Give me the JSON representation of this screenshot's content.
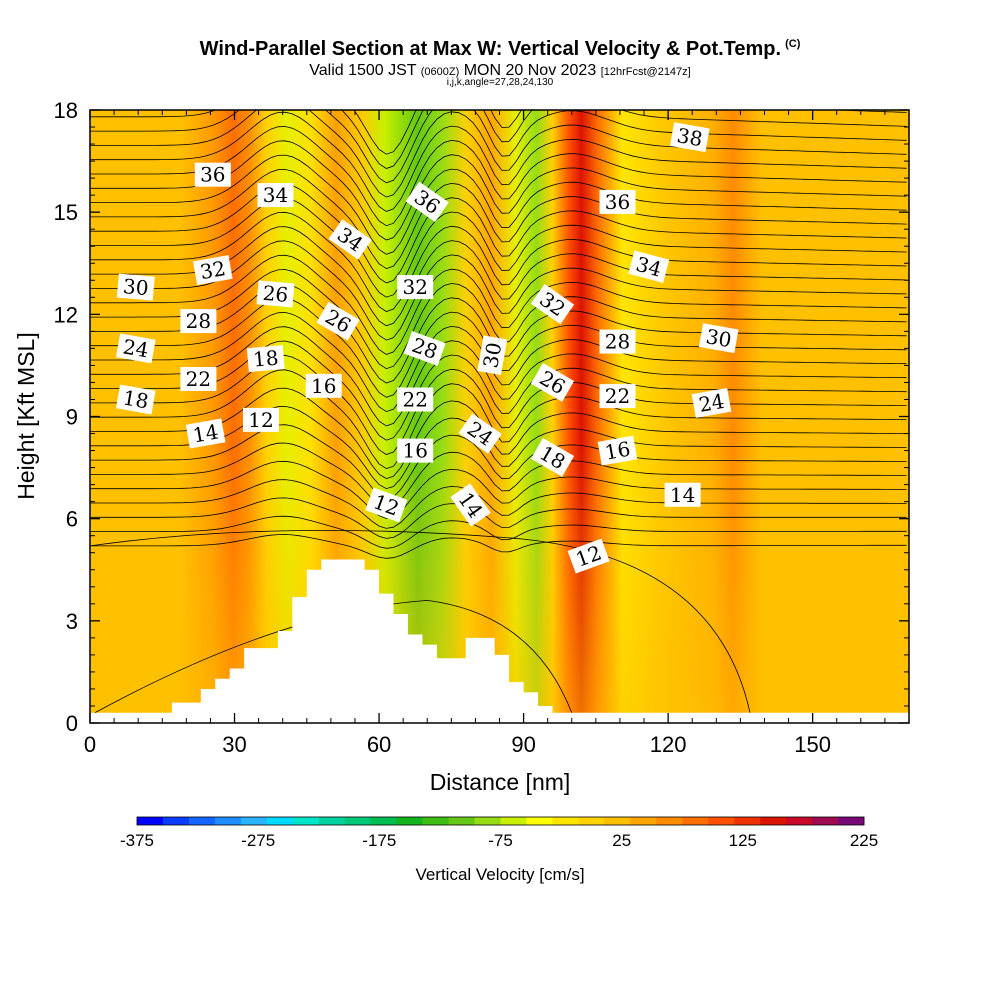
{
  "title_main": "Wind-Parallel Section at Max W: Vertical Velocity & Pot.Temp.",
  "title_mark": "(C)",
  "subtitle_a": "Valid 1500 JST",
  "subtitle_b": "(0600Z)",
  "subtitle_c": "MON 20 Nov 2023",
  "subtitle_d": "[12hrFcst@2147z]",
  "subtitle_line2": "i,j,k,angle=27,28,24,130",
  "chart_data": {
    "type": "heatmap",
    "xlabel": "Distance [nm]",
    "ylabel": "Height [Kft MSL]",
    "xlim": [
      0,
      170
    ],
    "ylim": [
      0,
      18
    ],
    "x_ticks": [
      "0",
      "30",
      "60",
      "90",
      "120",
      "150"
    ],
    "x_tick_values": [
      0,
      30,
      60,
      90,
      120,
      150
    ],
    "y_ticks": [
      "0",
      "3",
      "6",
      "9",
      "12",
      "15",
      "18"
    ],
    "y_tick_values": [
      0,
      3,
      6,
      9,
      12,
      15,
      18
    ],
    "colorbar": {
      "label": "Vertical Velocity [cm/s]",
      "min": -375,
      "max": 225,
      "step": 25,
      "tick_labels": [
        "-375",
        "-275",
        "-175",
        "-75",
        "25",
        "125",
        "225"
      ],
      "colors": [
        "#0000ff",
        "#0a3cff",
        "#1464ff",
        "#1e8cff",
        "#28b4ff",
        "#00dcff",
        "#00e6c8",
        "#00d2a0",
        "#00c878",
        "#00be50",
        "#14b41e",
        "#3cbe14",
        "#64c814",
        "#96dc14",
        "#c8f000",
        "#ffff00",
        "#ffe600",
        "#ffd200",
        "#ffbe00",
        "#ffa500",
        "#ff8c00",
        "#ff6e00",
        "#ff5000",
        "#f03200",
        "#dc1400",
        "#c80a28",
        "#a00a50",
        "#780a78"
      ]
    },
    "theta_contour_labels": [
      {
        "text": "38",
        "x": 124.5,
        "y": 17.2,
        "rot": 10
      },
      {
        "text": "36",
        "x": 25.5,
        "y": 16.1,
        "rot": 0
      },
      {
        "text": "34",
        "x": 38.5,
        "y": 15.5,
        "rot": 0
      },
      {
        "text": "36",
        "x": 70,
        "y": 15.3,
        "rot": 35
      },
      {
        "text": "36",
        "x": 109.5,
        "y": 15.3,
        "rot": 0
      },
      {
        "text": "34",
        "x": 54,
        "y": 14.2,
        "rot": 35
      },
      {
        "text": "32",
        "x": 25.5,
        "y": 13.3,
        "rot": -10
      },
      {
        "text": "34",
        "x": 116,
        "y": 13.4,
        "rot": 15
      },
      {
        "text": "30",
        "x": 9.5,
        "y": 12.8,
        "rot": 5
      },
      {
        "text": "32",
        "x": 67.5,
        "y": 12.8,
        "rot": 0
      },
      {
        "text": "26",
        "x": 38.5,
        "y": 12.6,
        "rot": 5
      },
      {
        "text": "32",
        "x": 96,
        "y": 12.3,
        "rot": 35
      },
      {
        "text": "28",
        "x": 22.5,
        "y": 11.8,
        "rot": 0
      },
      {
        "text": "26",
        "x": 51.5,
        "y": 11.8,
        "rot": 30
      },
      {
        "text": "28",
        "x": 109.5,
        "y": 11.2,
        "rot": 0
      },
      {
        "text": "30",
        "x": 130.5,
        "y": 11.3,
        "rot": 10
      },
      {
        "text": "24",
        "x": 9.5,
        "y": 11.0,
        "rot": 10
      },
      {
        "text": "28",
        "x": 69.5,
        "y": 11.0,
        "rot": 20
      },
      {
        "text": "30",
        "x": 83.5,
        "y": 10.8,
        "rot": -80
      },
      {
        "text": "18",
        "x": 36.5,
        "y": 10.7,
        "rot": -5
      },
      {
        "text": "22",
        "x": 22.5,
        "y": 10.1,
        "rot": 0
      },
      {
        "text": "26",
        "x": 96,
        "y": 10.0,
        "rot": 30
      },
      {
        "text": "16",
        "x": 48.5,
        "y": 9.9,
        "rot": 0
      },
      {
        "text": "22",
        "x": 67.5,
        "y": 9.5,
        "rot": 0
      },
      {
        "text": "22",
        "x": 109.5,
        "y": 9.6,
        "rot": 0
      },
      {
        "text": "18",
        "x": 9.5,
        "y": 9.5,
        "rot": 10
      },
      {
        "text": "24",
        "x": 129,
        "y": 9.4,
        "rot": -10
      },
      {
        "text": "12",
        "x": 35.5,
        "y": 8.9,
        "rot": 0
      },
      {
        "text": "14",
        "x": 24,
        "y": 8.5,
        "rot": -10
      },
      {
        "text": "24",
        "x": 81,
        "y": 8.5,
        "rot": 35
      },
      {
        "text": "16",
        "x": 67.5,
        "y": 8.0,
        "rot": 0
      },
      {
        "text": "16",
        "x": 109.5,
        "y": 8.0,
        "rot": -10
      },
      {
        "text": "18",
        "x": 96,
        "y": 7.8,
        "rot": 30
      },
      {
        "text": "14",
        "x": 123,
        "y": 6.7,
        "rot": 0
      },
      {
        "text": "12",
        "x": 61.5,
        "y": 6.4,
        "rot": 20
      },
      {
        "text": "14",
        "x": 79,
        "y": 6.4,
        "rot": 55
      },
      {
        "text": "12",
        "x": 103.5,
        "y": 4.9,
        "rot": -20
      }
    ],
    "terrain_profile_x": [
      0,
      10,
      17,
      23,
      26,
      29,
      32,
      39,
      42,
      45,
      48,
      51,
      54,
      57,
      60,
      63,
      66,
      69,
      72,
      75,
      78,
      81,
      84,
      87,
      90,
      93,
      96,
      170
    ],
    "terrain_profile_y": [
      0.3,
      0.3,
      0.6,
      1.0,
      1.3,
      1.6,
      2.2,
      2.7,
      3.7,
      4.5,
      4.8,
      4.8,
      4.8,
      4.5,
      3.8,
      3.2,
      2.6,
      2.3,
      1.9,
      1.9,
      2.5,
      2.5,
      2.0,
      1.2,
      0.9,
      0.5,
      0.3,
      0.3
    ]
  }
}
